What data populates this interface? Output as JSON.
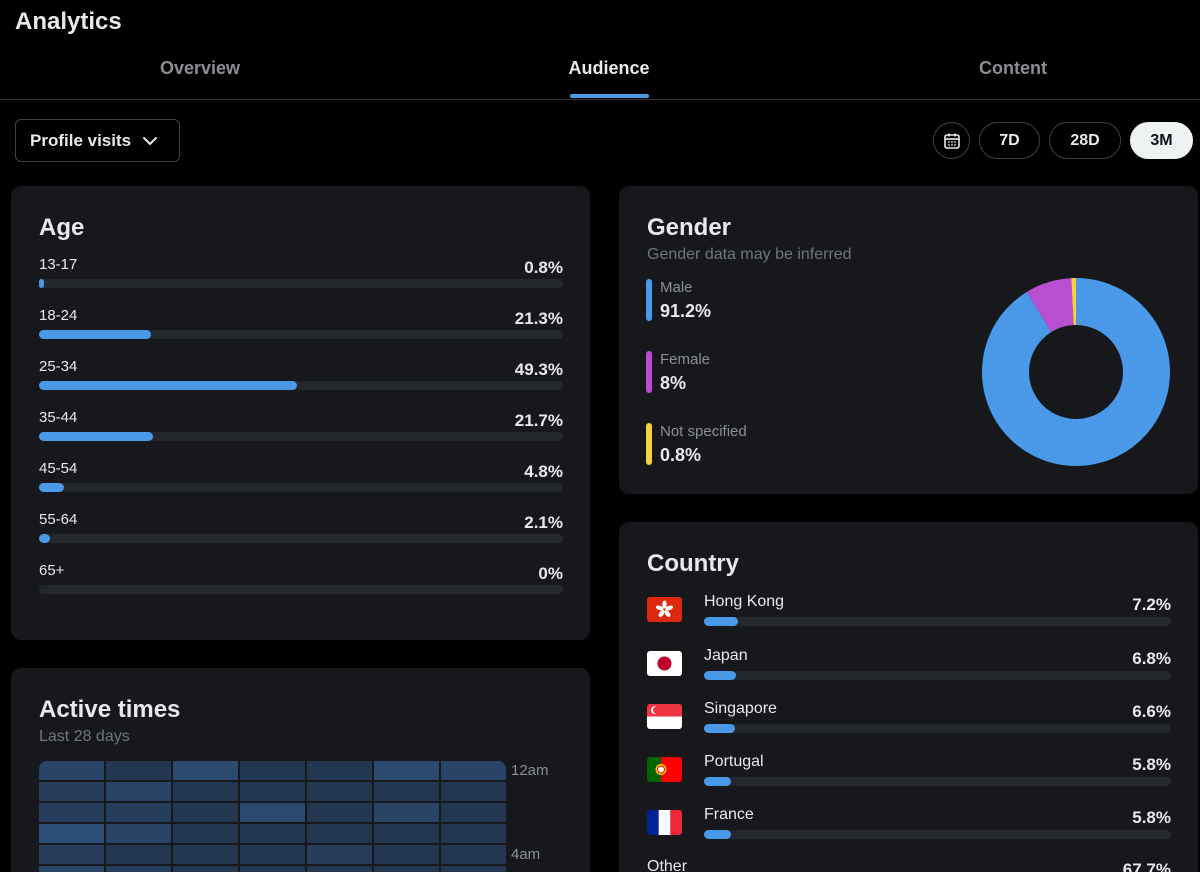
{
  "app_title": "Analytics",
  "tabs": [
    {
      "label": "Overview",
      "active": false
    },
    {
      "label": "Audience",
      "active": true
    },
    {
      "label": "Content",
      "active": false
    }
  ],
  "metric_select": {
    "label": "Profile visits",
    "icon": "chevron-down-icon"
  },
  "date_range": {
    "calendar_icon": "calendar-icon",
    "options": [
      "7D",
      "28D",
      "3M"
    ],
    "selected": "3M"
  },
  "accent_color": "#4a99e9",
  "age": {
    "title": "Age",
    "rows": [
      {
        "label": "13-17",
        "pct": "0.8%",
        "value": 0.8
      },
      {
        "label": "18-24",
        "pct": "21.3%",
        "value": 21.3
      },
      {
        "label": "25-34",
        "pct": "49.3%",
        "value": 49.3
      },
      {
        "label": "35-44",
        "pct": "21.7%",
        "value": 21.7
      },
      {
        "label": "45-54",
        "pct": "4.8%",
        "value": 4.8
      },
      {
        "label": "55-64",
        "pct": "2.1%",
        "value": 2.1
      },
      {
        "label": "65+",
        "pct": "0%",
        "value": 0
      }
    ]
  },
  "gender": {
    "title": "Gender",
    "subtitle": "Gender data may be inferred",
    "items": [
      {
        "label": "Male",
        "pct": "91.2%",
        "value": 91.2,
        "color": "#4a99e9"
      },
      {
        "label": "Female",
        "pct": "8%",
        "value": 8,
        "color": "#b84fd0"
      },
      {
        "label": "Not specified",
        "pct": "0.8%",
        "value": 0.8,
        "color": "#f5d142"
      }
    ]
  },
  "country": {
    "title": "Country",
    "rows": [
      {
        "name": "Hong Kong",
        "pct": "7.2%",
        "value": 7.2,
        "flag": "hong-kong-flag-icon"
      },
      {
        "name": "Japan",
        "pct": "6.8%",
        "value": 6.8,
        "flag": "japan-flag-icon"
      },
      {
        "name": "Singapore",
        "pct": "6.6%",
        "value": 6.6,
        "flag": "singapore-flag-icon"
      },
      {
        "name": "Portugal",
        "pct": "5.8%",
        "value": 5.8,
        "flag": "portugal-flag-icon"
      },
      {
        "name": "France",
        "pct": "5.8%",
        "value": 5.8,
        "flag": "france-flag-icon"
      }
    ],
    "other": {
      "name": "Other",
      "pct": "67.7%",
      "value": 67.7
    }
  },
  "active_times": {
    "title": "Active times",
    "subtitle": "Last 28 days",
    "hour_labels": [
      "12am",
      "4am"
    ],
    "heatmap_levels": [
      [
        0.35,
        0.15,
        0.45,
        0.15,
        0.15,
        0.45,
        0.35
      ],
      [
        0.25,
        0.35,
        0.15,
        0.15,
        0.15,
        0.15,
        0.15
      ],
      [
        0.25,
        0.25,
        0.15,
        0.45,
        0.15,
        0.35,
        0.15
      ],
      [
        0.5,
        0.35,
        0.15,
        0.15,
        0.15,
        0.15,
        0.15
      ],
      [
        0.25,
        0.15,
        0.15,
        0.15,
        0.25,
        0.15,
        0.15
      ],
      [
        0.35,
        0.25,
        0.15,
        0.15,
        0.15,
        0.15,
        0.15
      ]
    ]
  }
}
